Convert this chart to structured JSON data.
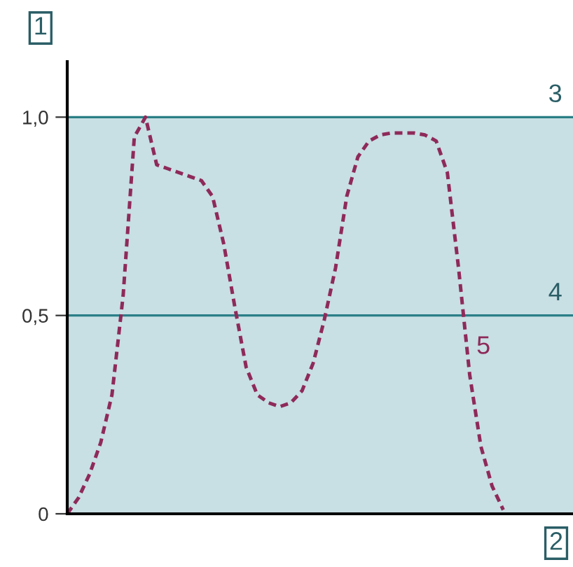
{
  "chart_data": {
    "type": "line",
    "xlabel": "2",
    "ylabel": "1",
    "categories": [
      null,
      null,
      null,
      null,
      null,
      null,
      null,
      null,
      null,
      null,
      null,
      null,
      null,
      null,
      null,
      null,
      null,
      null,
      null,
      null,
      null,
      null,
      null,
      null,
      null,
      null,
      null,
      null,
      null,
      null,
      null,
      null,
      null,
      null,
      null,
      null,
      null,
      null,
      null,
      null
    ],
    "series": [
      {
        "name": "5",
        "color": "#8e2a5a",
        "line_style": "dashed",
        "values": [
          0.0,
          0.04,
          0.1,
          0.18,
          0.3,
          0.55,
          0.95,
          1.0,
          0.88,
          0.87,
          0.86,
          0.85,
          0.84,
          0.8,
          0.68,
          0.52,
          0.37,
          0.3,
          0.28,
          0.27,
          0.28,
          0.31,
          0.38,
          0.49,
          0.62,
          0.8,
          0.9,
          0.94,
          0.955,
          0.96,
          0.96,
          0.96,
          0.955,
          0.94,
          0.86,
          0.62,
          0.35,
          0.17,
          0.07,
          0.01
        ]
      }
    ],
    "ylim": [
      0,
      1.14
    ],
    "yticks": [
      {
        "value": 0,
        "label": "0"
      },
      {
        "value": 0.5,
        "label": "0,5"
      },
      {
        "value": 1,
        "label": "1,0"
      }
    ],
    "tick_labels": "y",
    "bands": [
      {
        "axis": "y",
        "from": 0,
        "to": 1,
        "color": "#c8dfe4"
      }
    ],
    "ref_lines": [
      {
        "axis": "y",
        "value": 1,
        "color": "#2b7f86"
      },
      {
        "axis": "y",
        "value": 0.5,
        "color": "#2b7f86"
      }
    ],
    "annotations": [
      {
        "text": "3",
        "y": 1
      },
      {
        "text": "4",
        "y": 0.5
      }
    ],
    "grid": false,
    "legend": false,
    "marker": "none"
  }
}
